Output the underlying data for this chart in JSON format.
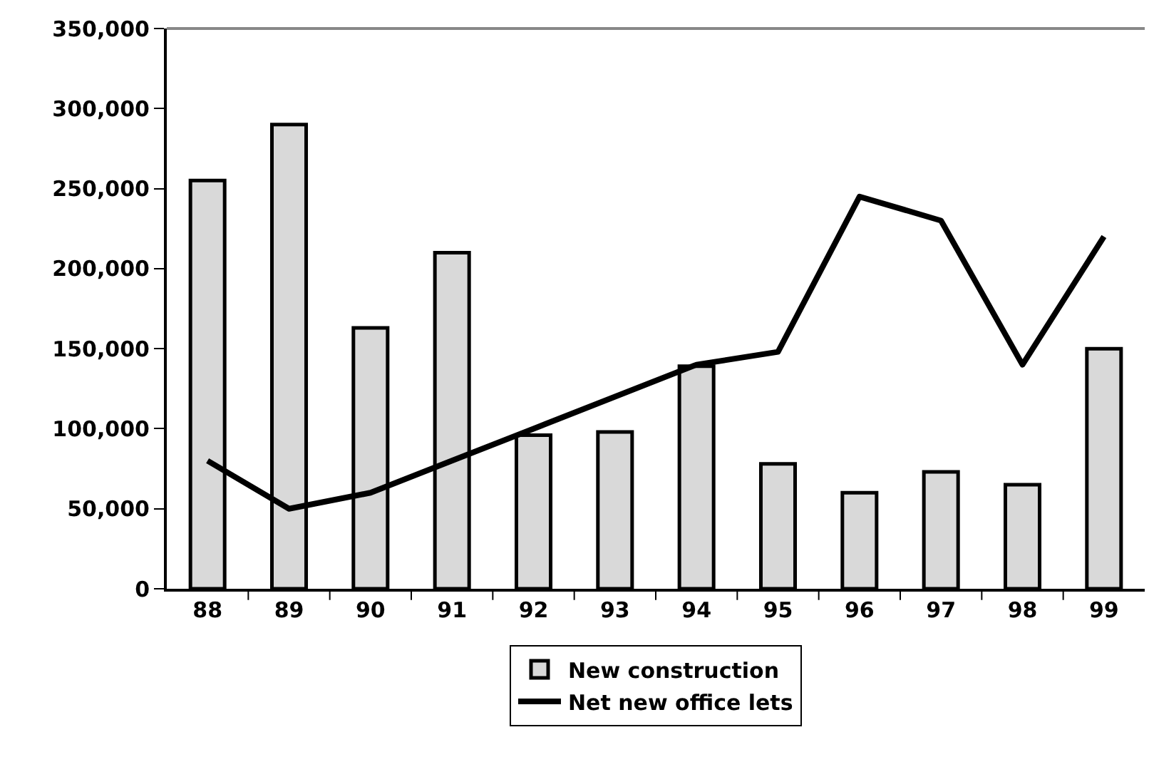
{
  "chart_data": {
    "type": "bar",
    "categories": [
      "88",
      "89",
      "90",
      "91",
      "92",
      "93",
      "94",
      "95",
      "96",
      "97",
      "98",
      "99"
    ],
    "series": [
      {
        "name": "New construction",
        "color": "#d9d9d9",
        "values": [
          255000,
          290000,
          163000,
          210000,
          96000,
          98000,
          139000,
          78000,
          60000,
          73000,
          65000,
          150000
        ]
      },
      {
        "name": "Net new office lets",
        "type": "line",
        "color": "#000000",
        "values": [
          80000,
          50000,
          60000,
          80000,
          100000,
          120000,
          140000,
          148000,
          245000,
          230000,
          140000,
          220000
        ]
      }
    ],
    "ylim": [
      0,
      350000
    ],
    "yticks": [
      {
        "value": 0,
        "label": "0"
      },
      {
        "value": 50000,
        "label": "50,000"
      },
      {
        "value": 100000,
        "label": "100,000"
      },
      {
        "value": 150000,
        "label": "150,000"
      },
      {
        "value": 200000,
        "label": "200,000"
      },
      {
        "value": 250000,
        "label": "250,000"
      },
      {
        "value": 300000,
        "label": "300,000"
      },
      {
        "value": 350000,
        "label": "350,000"
      }
    ],
    "grid": false,
    "legend": "bottom",
    "marker": "none",
    "line_style": "solid"
  }
}
